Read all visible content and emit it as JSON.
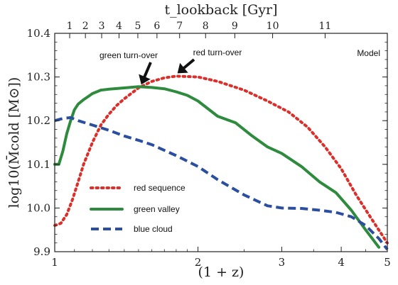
{
  "chart_data": {
    "type": "line",
    "xlabel": "(1 + z)",
    "ylabel": "log10(M̄cold [M⊙])",
    "top_xlabel": "t_lookback [Gyr]",
    "x_scale": "log",
    "xlim": [
      1,
      5
    ],
    "ylim": [
      9.9,
      10.4
    ],
    "x_ticks": [
      1,
      2,
      3,
      4,
      5
    ],
    "y_ticks": [
      9.9,
      10.0,
      10.1,
      10.2,
      10.3,
      10.4
    ],
    "y_tick_labels": [
      "9.9",
      "10.0",
      "10.1",
      "10.2",
      "10.3",
      "10.4"
    ],
    "top_ticks": [
      {
        "label": "1",
        "x": 1.075
      },
      {
        "label": "2",
        "x": 1.16
      },
      {
        "label": "3",
        "x": 1.255
      },
      {
        "label": "4",
        "x": 1.365
      },
      {
        "label": "5",
        "x": 1.495
      },
      {
        "label": "6",
        "x": 1.64
      },
      {
        "label": "7",
        "x": 1.83
      },
      {
        "label": "8",
        "x": 2.075
      },
      {
        "label": "9",
        "x": 2.39
      },
      {
        "label": "10",
        "x": 2.87
      },
      {
        "label": "11",
        "x": 3.7
      }
    ],
    "model_label": "Model",
    "annotations": [
      {
        "text": "green turn-over",
        "arrow_to": [
          1.52,
          10.278
        ]
      },
      {
        "text": "red turn-over",
        "arrow_to": [
          1.83,
          10.302
        ]
      }
    ],
    "legend": {
      "position": "lower-left"
    },
    "series": [
      {
        "name": "red sequence",
        "color": "#d9302b",
        "style": "dotted",
        "x": [
          1.0,
          1.03,
          1.06,
          1.09,
          1.12,
          1.15,
          1.2,
          1.25,
          1.3,
          1.35,
          1.4,
          1.5,
          1.6,
          1.7,
          1.8,
          1.9,
          2.0,
          2.2,
          2.5,
          2.8,
          3.1,
          3.4,
          3.7,
          4.0,
          4.3,
          4.6,
          5.0
        ],
        "y": [
          9.96,
          9.965,
          9.985,
          10.02,
          10.06,
          10.1,
          10.15,
          10.19,
          10.215,
          10.235,
          10.25,
          10.275,
          10.29,
          10.298,
          10.302,
          10.301,
          10.3,
          10.29,
          10.27,
          10.245,
          10.22,
          10.185,
          10.14,
          10.09,
          10.03,
          9.98,
          9.92
        ]
      },
      {
        "name": "green valley",
        "color": "#2e8b3e",
        "style": "solid",
        "x": [
          1.0,
          1.02,
          1.04,
          1.06,
          1.08,
          1.1,
          1.12,
          1.15,
          1.2,
          1.25,
          1.3,
          1.4,
          1.5,
          1.6,
          1.7,
          1.8,
          1.9,
          2.0,
          2.2,
          2.4,
          2.6,
          2.8,
          3.0,
          3.3,
          3.6,
          3.9,
          4.2,
          4.5,
          4.8
        ],
        "y": [
          10.1,
          10.1,
          10.13,
          10.17,
          10.2,
          10.225,
          10.238,
          10.248,
          10.262,
          10.27,
          10.272,
          10.275,
          10.278,
          10.276,
          10.273,
          10.266,
          10.258,
          10.245,
          10.21,
          10.195,
          10.165,
          10.14,
          10.125,
          10.095,
          10.06,
          10.035,
          9.995,
          9.95,
          9.91
        ]
      },
      {
        "name": "blue cloud",
        "color": "#2b4f9e",
        "style": "dashed",
        "x": [
          1.0,
          1.04,
          1.08,
          1.12,
          1.2,
          1.3,
          1.4,
          1.5,
          1.6,
          1.8,
          2.0,
          2.2,
          2.5,
          2.8,
          3.0,
          3.3,
          3.6,
          3.9,
          4.2,
          4.5,
          4.8,
          5.0
        ],
        "y": [
          10.2,
          10.205,
          10.207,
          10.2,
          10.19,
          10.178,
          10.165,
          10.155,
          10.145,
          10.12,
          10.095,
          10.065,
          10.03,
          10.005,
          10.0,
          9.999,
          9.995,
          9.99,
          9.98,
          9.96,
          9.93,
          9.905
        ]
      }
    ]
  }
}
